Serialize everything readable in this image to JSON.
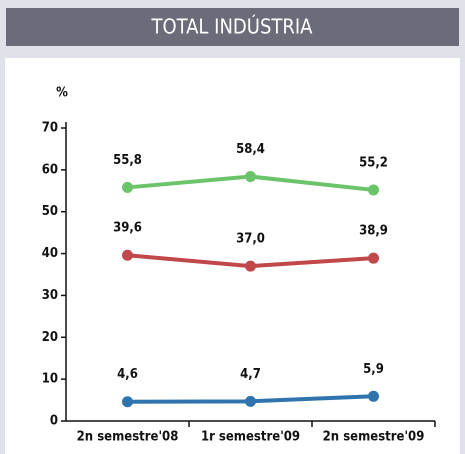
{
  "chart_data": {
    "type": "line",
    "title": "TOTAL INDÚSTRIA",
    "ylabel": "%",
    "categories": [
      "2n semestre'08",
      "1r semestre'09",
      "2n semestre'09"
    ],
    "series": [
      {
        "color": "#6cc46a",
        "values": [
          55.8,
          58.4,
          55.2
        ],
        "value_labels": [
          "55,8",
          "58,4",
          "55,2"
        ]
      },
      {
        "color": "#c0484a",
        "values": [
          39.6,
          37.0,
          38.9
        ],
        "value_labels": [
          "39,6",
          "37,0",
          "38,9"
        ]
      },
      {
        "color": "#2f74ad",
        "values": [
          4.6,
          4.7,
          5.9
        ],
        "value_labels": [
          "4,6",
          "4,7",
          "5,9"
        ]
      }
    ],
    "ylim": [
      0,
      70
    ],
    "yticks": [
      0,
      10,
      20,
      30,
      40,
      50,
      60,
      70
    ]
  }
}
